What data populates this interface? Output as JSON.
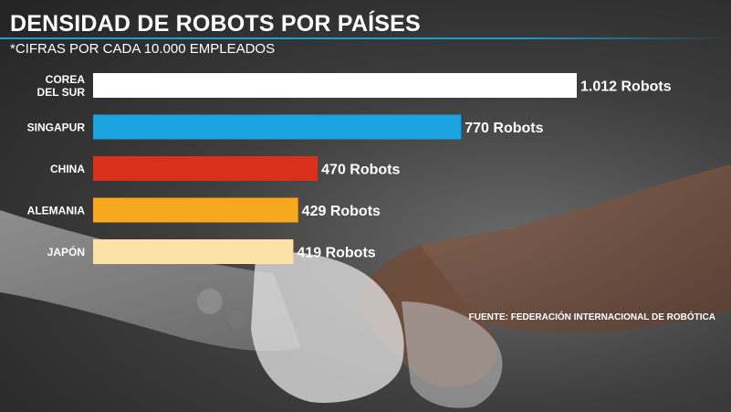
{
  "header": {
    "title": "DENSIDAD DE ROBOTS POR PAÍSES",
    "subtitle": "*CIFRAS POR CADA 10.000 EMPLEADOS"
  },
  "footer": {
    "source": "FUENTE: FEDERACIÓN INTERNACIONAL DE ROBÓTICA"
  },
  "chart_data": {
    "type": "bar",
    "orientation": "horizontal",
    "title": "DENSIDAD DE ROBOTS POR PAÍSES",
    "subtitle": "*CIFRAS POR CADA 10.000 EMPLEADOS",
    "categories": [
      [
        "COREA",
        "DEL SUR"
      ],
      [
        "SINGAPUR"
      ],
      [
        "CHINA"
      ],
      [
        "ALEMANIA"
      ],
      [
        "JAPÓN"
      ]
    ],
    "values": [
      1012,
      770,
      470,
      429,
      419
    ],
    "value_labels": [
      "1.012 Robots",
      "770 Robots",
      "470 Robots",
      "429 Robots",
      "419 Robots"
    ],
    "colors": [
      "#ffffff",
      "#1aa3de",
      "#d8301a",
      "#f6a91e",
      "#fde2a8"
    ],
    "xlim": [
      0,
      1012
    ],
    "grid": false,
    "legend": "none"
  }
}
